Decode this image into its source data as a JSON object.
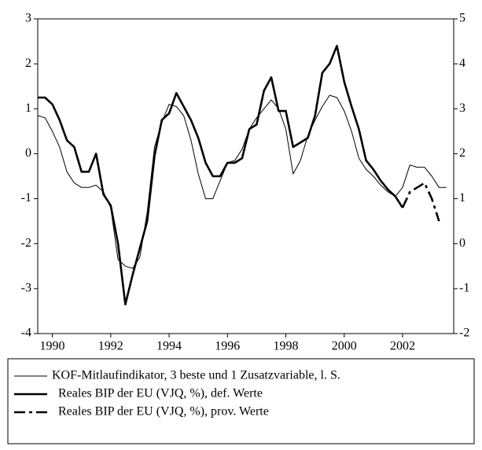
{
  "chart_data": {
    "type": "line",
    "xlim": [
      1989.5,
      2003.75
    ],
    "xticks": [
      1990,
      1992,
      1994,
      1996,
      1998,
      2000,
      2002
    ],
    "ylim": [
      -4,
      3
    ],
    "yticks": [
      -4,
      -3,
      -2,
      -1,
      0,
      1,
      2,
      3
    ],
    "y2lim": [
      -2,
      5
    ],
    "y2ticks": [
      -2,
      -1,
      0,
      1,
      2,
      3,
      4,
      5
    ],
    "series": [
      {
        "name": "KOF-Mitlaufindikator, 3 beste und 1 Zusatzvariable, l. S.",
        "color": "#000000",
        "style": "thin",
        "x": [
          1989.5,
          1989.75,
          1990,
          1990.25,
          1990.5,
          1990.75,
          1991,
          1991.25,
          1991.5,
          1991.75,
          1992,
          1992.25,
          1992.5,
          1992.75,
          1993,
          1993.25,
          1993.5,
          1993.75,
          1994,
          1994.25,
          1994.5,
          1994.75,
          1995,
          1995.25,
          1995.5,
          1995.75,
          1996,
          1996.25,
          1996.5,
          1996.75,
          1997,
          1997.25,
          1997.5,
          1997.75,
          1998,
          1998.25,
          1998.5,
          1998.75,
          1999,
          1999.25,
          1999.5,
          1999.75,
          2000,
          2000.25,
          2000.5,
          2000.75,
          2001,
          2001.25,
          2001.5,
          2001.75,
          2002,
          2002.25,
          2002.5,
          2002.75,
          2003,
          2003.25,
          2003.5
        ],
        "values": [
          0.85,
          0.8,
          0.5,
          0.15,
          -0.4,
          -0.65,
          -0.75,
          -0.75,
          -0.7,
          -0.85,
          -1.2,
          -2.35,
          -2.5,
          -2.55,
          -2.3,
          -1.3,
          0.15,
          0.7,
          1.1,
          1.05,
          0.85,
          0.3,
          -0.45,
          -1.0,
          -1.0,
          -0.6,
          -0.2,
          -0.15,
          0.1,
          0.55,
          0.8,
          1.0,
          1.2,
          1.0,
          0.55,
          -0.45,
          -0.15,
          0.4,
          0.75,
          1.05,
          1.3,
          1.25,
          0.95,
          0.5,
          -0.1,
          -0.35,
          -0.5,
          -0.7,
          -0.85,
          -0.95,
          -0.75,
          -0.25,
          -0.3,
          -0.3,
          -0.5,
          -0.75,
          -0.75
        ]
      },
      {
        "name": "Reales BIP der EU (VJQ, %), def. Werte",
        "color": "#000000",
        "style": "bold",
        "axis": "y2",
        "x": [
          1989.5,
          1989.75,
          1990,
          1990.25,
          1990.5,
          1990.75,
          1991,
          1991.25,
          1991.5,
          1991.75,
          1992,
          1992.25,
          1992.5,
          1992.75,
          1993,
          1993.25,
          1993.5,
          1993.75,
          1994,
          1994.25,
          1994.5,
          1994.75,
          1995,
          1995.25,
          1995.5,
          1995.75,
          1996,
          1996.25,
          1996.5,
          1996.75,
          1997,
          1997.25,
          1997.5,
          1997.75,
          1998,
          1998.25,
          1998.5,
          1998.75,
          1999,
          1999.25,
          1999.5,
          1999.75,
          2000,
          2000.25,
          2000.5,
          2000.75,
          2001,
          2001.25,
          2001.5,
          2001.75,
          2002
        ],
        "values": [
          3.25,
          3.25,
          3.1,
          2.75,
          2.3,
          2.15,
          1.6,
          1.6,
          2.0,
          1.1,
          0.85,
          0.0,
          -1.35,
          -0.7,
          -0.1,
          0.5,
          1.95,
          2.75,
          2.9,
          3.35,
          3.05,
          2.75,
          2.35,
          1.8,
          1.5,
          1.5,
          1.8,
          1.8,
          1.9,
          2.55,
          2.65,
          3.4,
          3.7,
          2.95,
          2.95,
          2.15,
          2.25,
          2.35,
          2.85,
          3.8,
          4.0,
          4.4,
          3.6,
          3.05,
          2.55,
          1.85,
          1.65,
          1.4,
          1.2,
          1.05,
          0.8
        ]
      },
      {
        "name": "Reales BIP der EU (VJQ, %), prov. Werte",
        "color": "#000000",
        "style": "dashed",
        "axis": "y2",
        "x": [
          2002,
          2002.25,
          2002.5,
          2002.75,
          2003,
          2003.25
        ],
        "values": [
          0.8,
          1.15,
          1.25,
          1.35,
          1.0,
          0.5
        ]
      }
    ]
  }
}
